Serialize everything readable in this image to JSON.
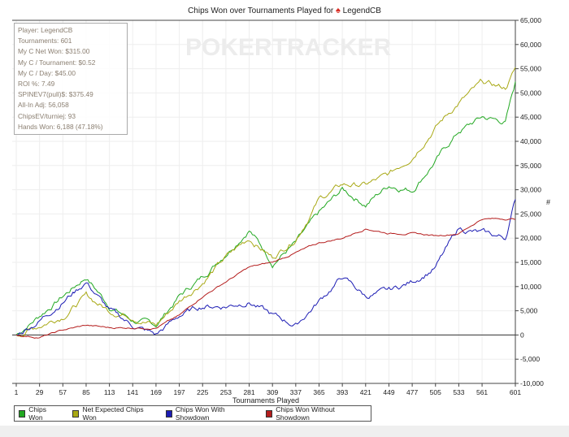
{
  "title": "Chips Won over Tournaments Played for",
  "player_name": "LegendCB",
  "watermark": "POKERTRACKER",
  "stats": [
    "Player: LegendCB",
    "Tournaments: 601",
    "My C Net Won: $315.00",
    "My C / Tournament: $0.52",
    "My C / Day: $45.00",
    "ROI %: 7.49",
    "SPINEV7(pull)$: $375.49",
    "All-In Adj: 56,058",
    "ChipsEV/turniej: 93",
    "Hands Won: 6,188 (47.18%)"
  ],
  "right_axis_label": "#",
  "chart_data": {
    "type": "line",
    "title": "Chips Won over Tournaments Played for LegendCB",
    "xlabel": "Tournaments Played",
    "ylabel": "#",
    "xlim": [
      1,
      601
    ],
    "ylim": [
      -10000,
      65000
    ],
    "xticks": [
      1,
      29,
      57,
      85,
      113,
      141,
      169,
      197,
      225,
      253,
      281,
      309,
      337,
      365,
      393,
      421,
      449,
      477,
      505,
      533,
      561,
      601
    ],
    "yticks": [
      -10000,
      -5000,
      0,
      5000,
      10000,
      15000,
      20000,
      25000,
      30000,
      35000,
      40000,
      45000,
      50000,
      55000,
      60000,
      65000
    ],
    "ytick_labels": [
      "-10,000",
      "-5,000",
      "0",
      "5,000",
      "10,000",
      "15,000",
      "20,000",
      "25,000",
      "30,000",
      "35,000",
      "40,000",
      "45,000",
      "50,000",
      "55,000",
      "60,000",
      "65,000"
    ],
    "grid": true,
    "legend_position": "bottom-left",
    "x": [
      1,
      29,
      57,
      85,
      113,
      141,
      169,
      197,
      225,
      253,
      281,
      309,
      337,
      365,
      393,
      421,
      449,
      477,
      505,
      533,
      561,
      589,
      601
    ],
    "series": [
      {
        "name": "Chips Won",
        "color": "#22a822",
        "values": [
          0,
          4000,
          8000,
          12000,
          6000,
          3000,
          2000,
          8000,
          12000,
          17000,
          22000,
          15000,
          19000,
          25000,
          30000,
          27000,
          31000,
          30000,
          36000,
          42000,
          45000,
          44000,
          52000
        ]
      },
      {
        "name": "Net Expected Chips Won",
        "color": "#a8a814",
        "values": [
          0,
          2000,
          4000,
          8000,
          5000,
          4000,
          2000,
          7000,
          11000,
          16000,
          20000,
          16000,
          20000,
          28000,
          31000,
          31000,
          33000,
          37000,
          43000,
          48000,
          52000,
          51000,
          55000
        ]
      },
      {
        "name": "Chips Won With Showdown",
        "color": "#1c1cb4",
        "values": [
          0,
          3000,
          7000,
          11000,
          5000,
          2000,
          0,
          4000,
          6000,
          6000,
          7000,
          4000,
          2000,
          7000,
          12000,
          8000,
          9000,
          11000,
          14000,
          22000,
          21000,
          20000,
          28000
        ]
      },
      {
        "name": "Chips Won Without Showdown",
        "color": "#b41c1c",
        "values": [
          0,
          -500,
          1000,
          2000,
          1500,
          1500,
          1500,
          4000,
          8000,
          11000,
          14000,
          15000,
          17000,
          19000,
          20000,
          22000,
          21000,
          21000,
          20500,
          21000,
          24000,
          24000,
          24000
        ]
      }
    ]
  }
}
